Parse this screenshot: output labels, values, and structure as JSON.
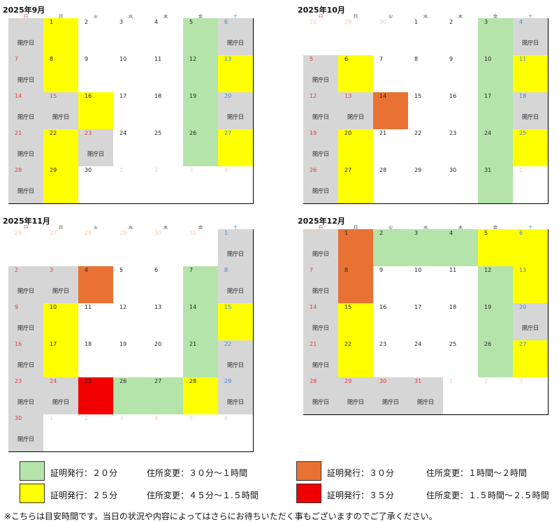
{
  "weekdays": [
    "日",
    "月",
    "火",
    "水",
    "木",
    "金",
    "土"
  ],
  "closed_label": "閉庁日",
  "colors": {
    "white": "#ffffff",
    "gray": "#d6d6d6",
    "green": "#b4e4aa",
    "yellow": "#ffff00",
    "orange": "#e87133",
    "red": "#f00000"
  },
  "months": [
    {
      "title": "2025年9月",
      "weeks": [
        [
          {
            "d": "31",
            "other": true,
            "c": "gray",
            "closed": true
          },
          {
            "d": "1",
            "c": "yellow"
          },
          {
            "d": "2",
            "c": "white"
          },
          {
            "d": "3",
            "c": "white"
          },
          {
            "d": "4",
            "c": "white"
          },
          {
            "d": "5",
            "c": "green"
          },
          {
            "d": "6",
            "c": "gray",
            "closed": true
          }
        ],
        [
          {
            "d": "7",
            "c": "gray",
            "closed": true
          },
          {
            "d": "8",
            "c": "yellow"
          },
          {
            "d": "9",
            "c": "white"
          },
          {
            "d": "10",
            "c": "white"
          },
          {
            "d": "11",
            "c": "white"
          },
          {
            "d": "12",
            "c": "green"
          },
          {
            "d": "13",
            "c": "yellow"
          }
        ],
        [
          {
            "d": "14",
            "c": "gray",
            "closed": true
          },
          {
            "d": "15",
            "c": "gray",
            "closed": true,
            "holiday": true
          },
          {
            "d": "16",
            "c": "yellow"
          },
          {
            "d": "17",
            "c": "white"
          },
          {
            "d": "18",
            "c": "white"
          },
          {
            "d": "19",
            "c": "green"
          },
          {
            "d": "20",
            "c": "gray",
            "closed": true
          }
        ],
        [
          {
            "d": "21",
            "c": "gray",
            "closed": true
          },
          {
            "d": "22",
            "c": "yellow"
          },
          {
            "d": "23",
            "c": "gray",
            "closed": true,
            "holiday": true
          },
          {
            "d": "24",
            "c": "white"
          },
          {
            "d": "25",
            "c": "white"
          },
          {
            "d": "26",
            "c": "green"
          },
          {
            "d": "27",
            "c": "yellow"
          }
        ],
        [
          {
            "d": "28",
            "c": "gray",
            "closed": true
          },
          {
            "d": "29",
            "c": "yellow"
          },
          {
            "d": "30",
            "c": "white"
          },
          {
            "d": "1",
            "other": true,
            "c": "white"
          },
          {
            "d": "2",
            "other": true,
            "c": "white"
          },
          {
            "d": "3",
            "other": true,
            "c": "white"
          },
          {
            "d": "4",
            "other": true,
            "c": "white"
          }
        ]
      ]
    },
    {
      "title": "2025年10月",
      "weeks": [
        [
          {
            "d": "28",
            "other": true,
            "c": "white"
          },
          {
            "d": "29",
            "other": true,
            "c": "white"
          },
          {
            "d": "30",
            "other": true,
            "c": "white"
          },
          {
            "d": "1",
            "c": "white"
          },
          {
            "d": "2",
            "c": "white"
          },
          {
            "d": "3",
            "c": "green"
          },
          {
            "d": "4",
            "c": "gray",
            "closed": true
          }
        ],
        [
          {
            "d": "5",
            "c": "gray",
            "closed": true
          },
          {
            "d": "6",
            "c": "yellow"
          },
          {
            "d": "7",
            "c": "white"
          },
          {
            "d": "8",
            "c": "white"
          },
          {
            "d": "9",
            "c": "white"
          },
          {
            "d": "10",
            "c": "green"
          },
          {
            "d": "11",
            "c": "yellow"
          }
        ],
        [
          {
            "d": "12",
            "c": "gray",
            "closed": true
          },
          {
            "d": "13",
            "c": "gray",
            "closed": true,
            "holiday": true
          },
          {
            "d": "14",
            "c": "orange"
          },
          {
            "d": "15",
            "c": "white"
          },
          {
            "d": "16",
            "c": "white"
          },
          {
            "d": "17",
            "c": "green"
          },
          {
            "d": "18",
            "c": "gray",
            "closed": true
          }
        ],
        [
          {
            "d": "19",
            "c": "gray",
            "closed": true
          },
          {
            "d": "20",
            "c": "yellow"
          },
          {
            "d": "21",
            "c": "white"
          },
          {
            "d": "22",
            "c": "white"
          },
          {
            "d": "23",
            "c": "white"
          },
          {
            "d": "24",
            "c": "green"
          },
          {
            "d": "25",
            "c": "yellow"
          }
        ],
        [
          {
            "d": "26",
            "c": "gray",
            "closed": true
          },
          {
            "d": "27",
            "c": "yellow"
          },
          {
            "d": "28",
            "c": "white"
          },
          {
            "d": "29",
            "c": "white"
          },
          {
            "d": "30",
            "c": "white"
          },
          {
            "d": "31",
            "c": "green"
          },
          {
            "d": "1",
            "other": true,
            "c": "white"
          }
        ]
      ]
    },
    {
      "title": "2025年11月",
      "weeks": [
        [
          {
            "d": "26",
            "other": true,
            "c": "white"
          },
          {
            "d": "27",
            "other": true,
            "c": "white"
          },
          {
            "d": "28",
            "other": true,
            "c": "white"
          },
          {
            "d": "29",
            "other": true,
            "c": "white"
          },
          {
            "d": "30",
            "other": true,
            "c": "white"
          },
          {
            "d": "31",
            "other": true,
            "c": "white"
          },
          {
            "d": "1",
            "c": "gray",
            "closed": true
          }
        ],
        [
          {
            "d": "2",
            "c": "gray",
            "closed": true
          },
          {
            "d": "3",
            "c": "gray",
            "closed": true,
            "holiday": true
          },
          {
            "d": "4",
            "c": "orange"
          },
          {
            "d": "5",
            "c": "white"
          },
          {
            "d": "6",
            "c": "white"
          },
          {
            "d": "7",
            "c": "green"
          },
          {
            "d": "8",
            "c": "gray",
            "closed": true
          }
        ],
        [
          {
            "d": "9",
            "c": "gray",
            "closed": true
          },
          {
            "d": "10",
            "c": "yellow"
          },
          {
            "d": "11",
            "c": "white"
          },
          {
            "d": "12",
            "c": "white"
          },
          {
            "d": "13",
            "c": "white"
          },
          {
            "d": "14",
            "c": "green"
          },
          {
            "d": "15",
            "c": "yellow"
          }
        ],
        [
          {
            "d": "16",
            "c": "gray",
            "closed": true
          },
          {
            "d": "17",
            "c": "yellow"
          },
          {
            "d": "18",
            "c": "white"
          },
          {
            "d": "19",
            "c": "white"
          },
          {
            "d": "20",
            "c": "white"
          },
          {
            "d": "21",
            "c": "green"
          },
          {
            "d": "22",
            "c": "gray",
            "closed": true
          }
        ],
        [
          {
            "d": "23",
            "c": "gray",
            "closed": true
          },
          {
            "d": "24",
            "c": "gray",
            "closed": true,
            "holiday": true
          },
          {
            "d": "25",
            "c": "red"
          },
          {
            "d": "26",
            "c": "green"
          },
          {
            "d": "27",
            "c": "green"
          },
          {
            "d": "28",
            "c": "yellow"
          },
          {
            "d": "29",
            "c": "gray",
            "closed": true
          }
        ],
        [
          {
            "d": "30",
            "c": "gray",
            "closed": true
          },
          {
            "d": "1",
            "other": true,
            "c": "white"
          },
          {
            "d": "2",
            "other": true,
            "c": "white"
          },
          {
            "d": "3",
            "other": true,
            "c": "white"
          },
          {
            "d": "4",
            "other": true,
            "c": "white"
          },
          {
            "d": "5",
            "other": true,
            "c": "white"
          },
          {
            "d": "6",
            "other": true,
            "c": "white"
          }
        ]
      ]
    },
    {
      "title": "2025年12月",
      "weeks": [
        [
          {
            "d": "30",
            "other": true,
            "c": "gray",
            "closed": true
          },
          {
            "d": "1",
            "c": "orange"
          },
          {
            "d": "2",
            "c": "green"
          },
          {
            "d": "3",
            "c": "green"
          },
          {
            "d": "4",
            "c": "green"
          },
          {
            "d": "5",
            "c": "yellow"
          },
          {
            "d": "6",
            "c": "yellow"
          }
        ],
        [
          {
            "d": "7",
            "c": "gray",
            "closed": true
          },
          {
            "d": "8",
            "c": "orange"
          },
          {
            "d": "9",
            "c": "white"
          },
          {
            "d": "10",
            "c": "white"
          },
          {
            "d": "11",
            "c": "white"
          },
          {
            "d": "12",
            "c": "green"
          },
          {
            "d": "13",
            "c": "yellow"
          }
        ],
        [
          {
            "d": "14",
            "c": "gray",
            "closed": true
          },
          {
            "d": "15",
            "c": "yellow"
          },
          {
            "d": "16",
            "c": "white"
          },
          {
            "d": "17",
            "c": "white"
          },
          {
            "d": "18",
            "c": "white"
          },
          {
            "d": "19",
            "c": "green"
          },
          {
            "d": "20",
            "c": "gray",
            "closed": true
          }
        ],
        [
          {
            "d": "21",
            "c": "gray",
            "closed": true
          },
          {
            "d": "22",
            "c": "yellow"
          },
          {
            "d": "23",
            "c": "white"
          },
          {
            "d": "24",
            "c": "white"
          },
          {
            "d": "25",
            "c": "white"
          },
          {
            "d": "26",
            "c": "green"
          },
          {
            "d": "27",
            "c": "yellow"
          }
        ],
        [
          {
            "d": "28",
            "c": "gray",
            "closed": true
          },
          {
            "d": "29",
            "c": "gray",
            "closed": true,
            "holiday": true
          },
          {
            "d": "30",
            "c": "gray",
            "closed": true,
            "holiday": true
          },
          {
            "d": "31",
            "c": "gray",
            "closed": true,
            "holiday": true
          },
          {
            "d": "1",
            "other": true,
            "c": "white"
          },
          {
            "d": "2",
            "other": true,
            "c": "white"
          },
          {
            "d": "3",
            "other": true,
            "c": "white"
          }
        ]
      ]
    }
  ],
  "legend": [
    {
      "color": "green",
      "cert": "証明発行：２０分",
      "addr": "住所変更：３０分～１時間"
    },
    {
      "color": "yellow",
      "cert": "証明発行：２５分",
      "addr": "住所変更：４５分～１.５時間"
    },
    {
      "color": "orange",
      "cert": "証明発行：３０分",
      "addr": "住所変更：１時間～２時間"
    },
    {
      "color": "red",
      "cert": "証明発行：３５分",
      "addr": "住所変更：１.５時間～２.５時間"
    }
  ],
  "footnote": "※こちらは目安時間です。当日の状況や内容によってはさらにお待ちいただく事もございますのでご了承ください。"
}
